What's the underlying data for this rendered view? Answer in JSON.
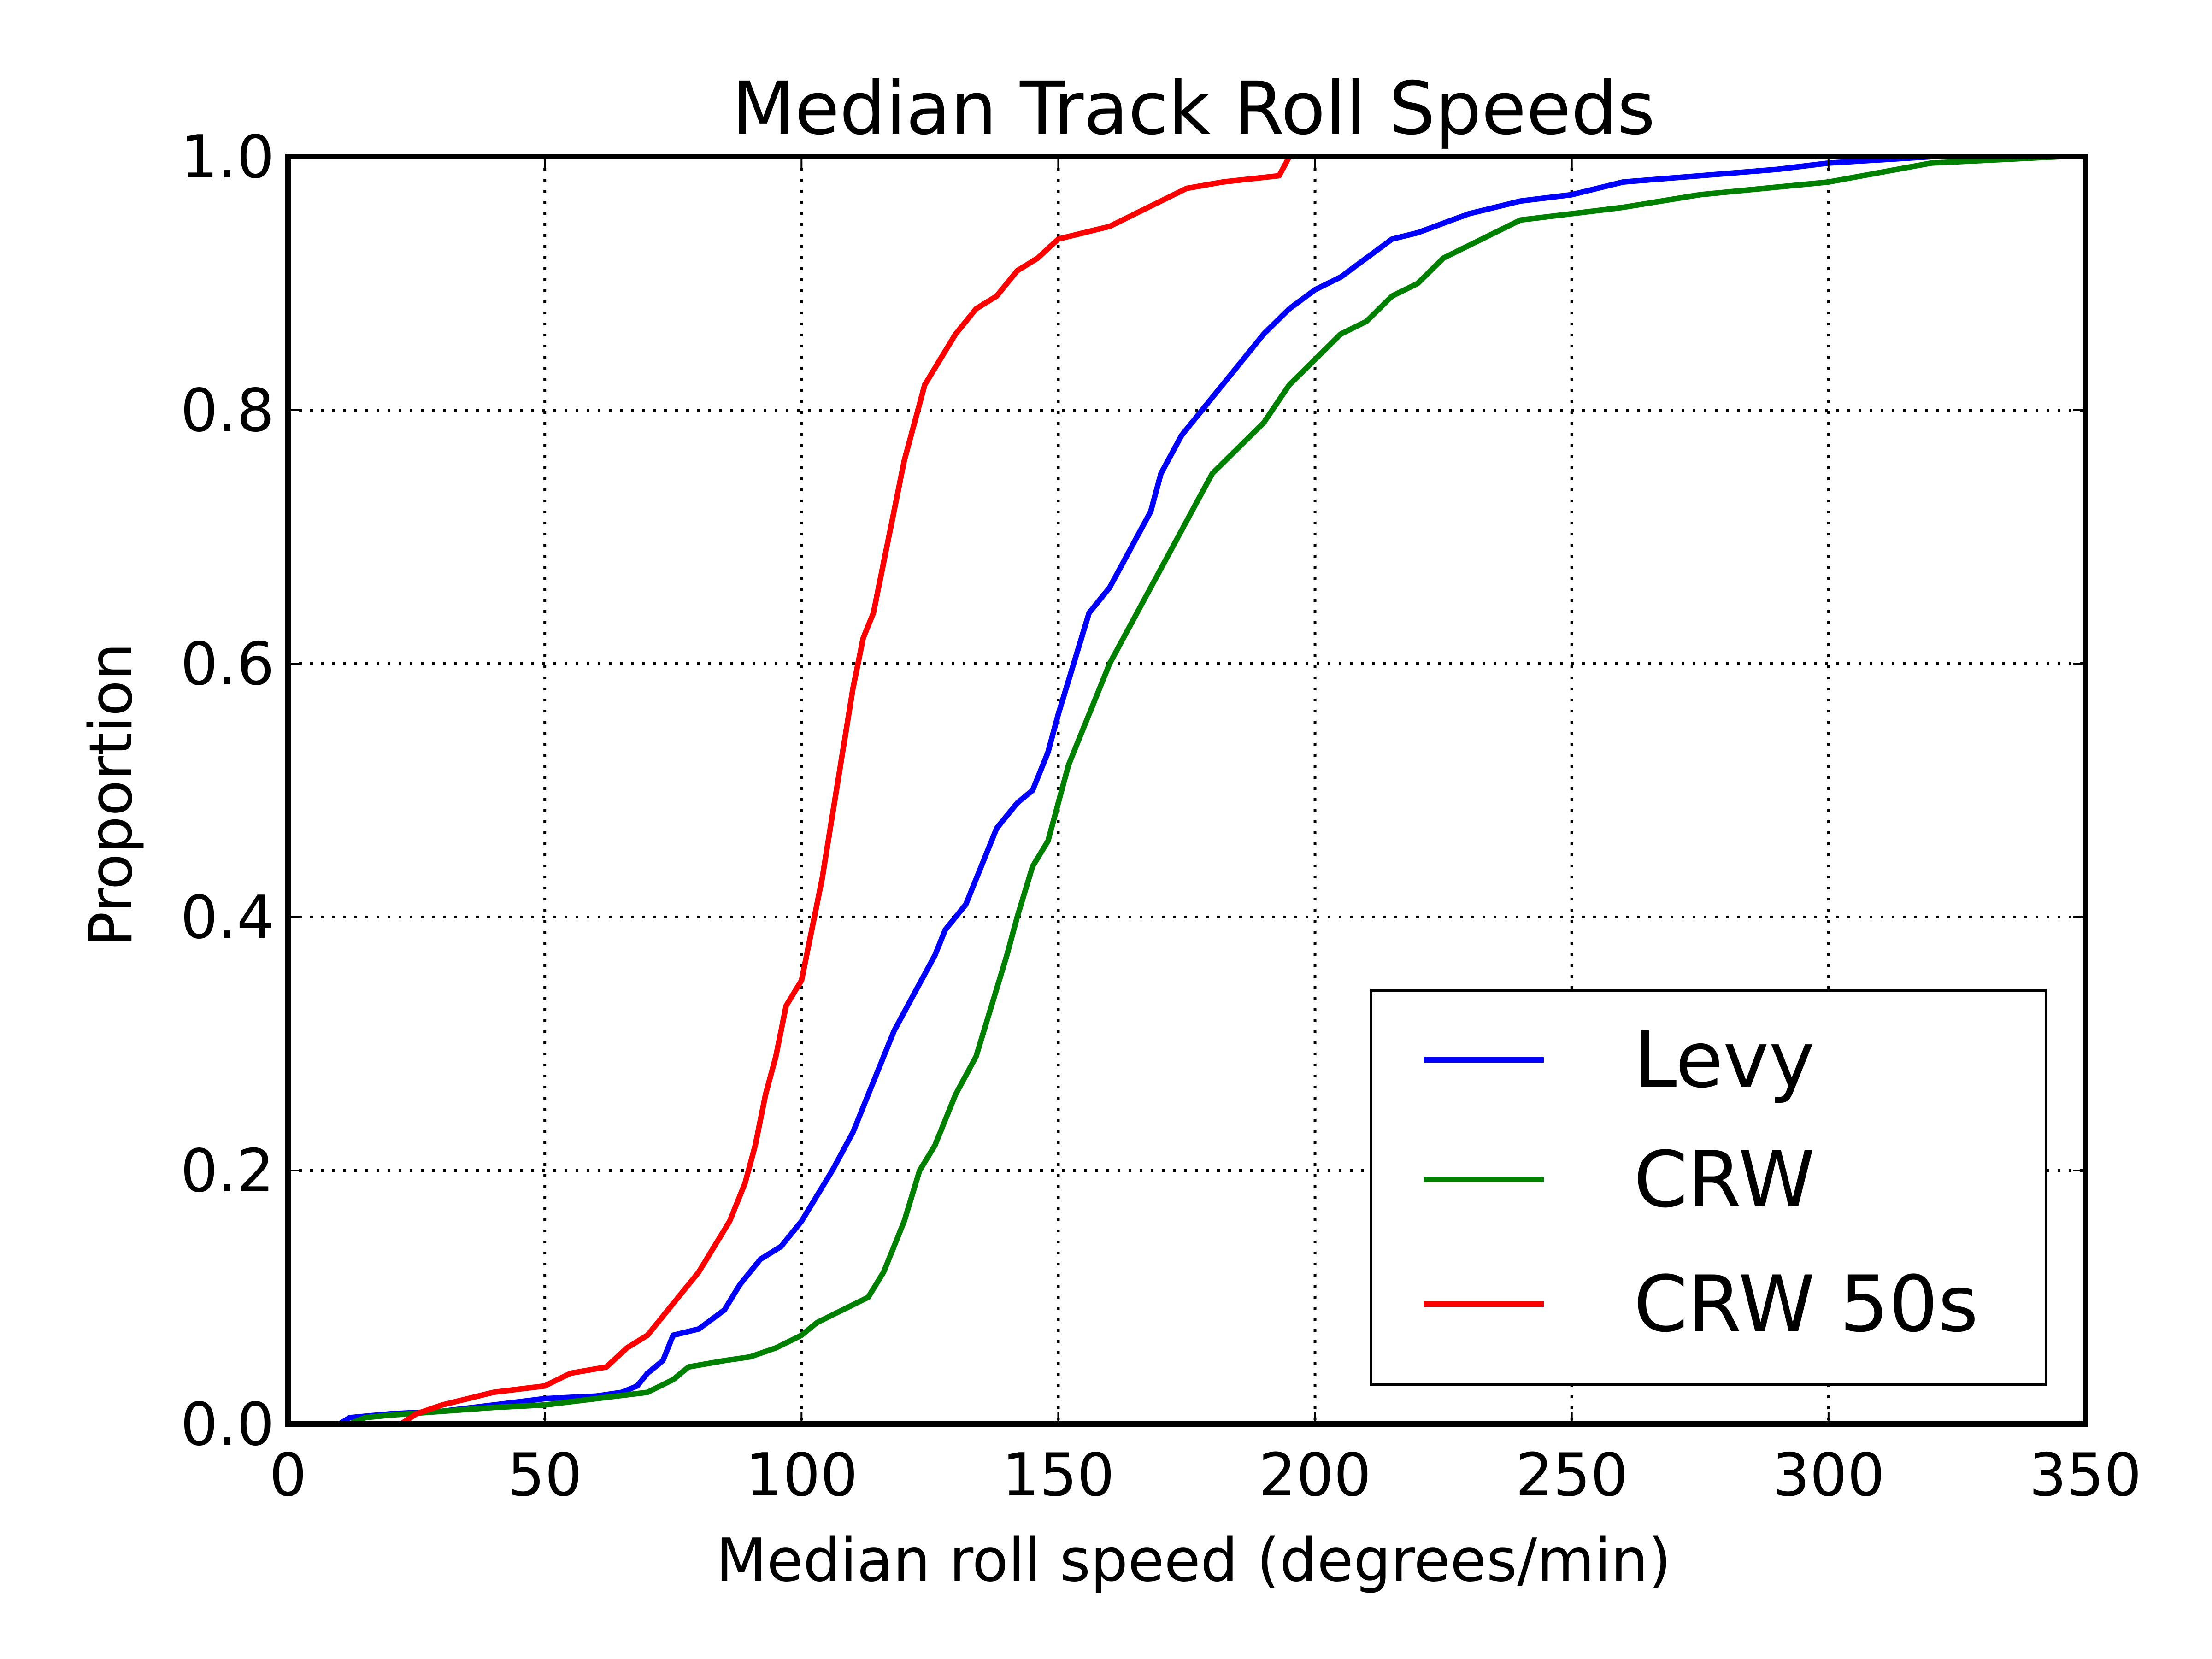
{
  "chart_data": {
    "type": "line",
    "title": "Median Track Roll Speeds",
    "xlabel": "Median roll speed (degrees/min)",
    "ylabel": "Proportion",
    "xlim": [
      0,
      350
    ],
    "ylim": [
      0.0,
      1.0
    ],
    "x_ticks": [
      "0",
      "50",
      "100",
      "150",
      "200",
      "250",
      "300",
      "350"
    ],
    "y_ticks": [
      "0.0",
      "0.2",
      "0.4",
      "0.6",
      "0.8",
      "1.0"
    ],
    "grid": true,
    "legend_position": "lower-right",
    "series": [
      {
        "name": "Levy",
        "color": "#0000ff",
        "points": [
          [
            10,
            0.0
          ],
          [
            12,
            0.005
          ],
          [
            20,
            0.008
          ],
          [
            30,
            0.01
          ],
          [
            40,
            0.015
          ],
          [
            50,
            0.02
          ],
          [
            60,
            0.022
          ],
          [
            65,
            0.025
          ],
          [
            68,
            0.03
          ],
          [
            70,
            0.04
          ],
          [
            73,
            0.05
          ],
          [
            75,
            0.07
          ],
          [
            80,
            0.075
          ],
          [
            85,
            0.09
          ],
          [
            88,
            0.11
          ],
          [
            92,
            0.13
          ],
          [
            96,
            0.14
          ],
          [
            100,
            0.16
          ],
          [
            103,
            0.18
          ],
          [
            106,
            0.2
          ],
          [
            110,
            0.23
          ],
          [
            114,
            0.27
          ],
          [
            118,
            0.31
          ],
          [
            122,
            0.34
          ],
          [
            126,
            0.37
          ],
          [
            128,
            0.39
          ],
          [
            132,
            0.41
          ],
          [
            135,
            0.44
          ],
          [
            138,
            0.47
          ],
          [
            142,
            0.49
          ],
          [
            145,
            0.5
          ],
          [
            148,
            0.53
          ],
          [
            150,
            0.56
          ],
          [
            153,
            0.6
          ],
          [
            156,
            0.64
          ],
          [
            160,
            0.66
          ],
          [
            164,
            0.69
          ],
          [
            168,
            0.72
          ],
          [
            170,
            0.75
          ],
          [
            174,
            0.78
          ],
          [
            178,
            0.8
          ],
          [
            182,
            0.82
          ],
          [
            186,
            0.84
          ],
          [
            190,
            0.86
          ],
          [
            195,
            0.88
          ],
          [
            200,
            0.895
          ],
          [
            205,
            0.905
          ],
          [
            210,
            0.92
          ],
          [
            215,
            0.935
          ],
          [
            220,
            0.94
          ],
          [
            230,
            0.955
          ],
          [
            240,
            0.965
          ],
          [
            250,
            0.97
          ],
          [
            260,
            0.98
          ],
          [
            275,
            0.985
          ],
          [
            290,
            0.99
          ],
          [
            300,
            0.995
          ],
          [
            320,
            1.0
          ]
        ]
      },
      {
        "name": "CRW",
        "color": "#008000",
        "points": [
          [
            12,
            0.0
          ],
          [
            15,
            0.005
          ],
          [
            20,
            0.007
          ],
          [
            30,
            0.01
          ],
          [
            40,
            0.013
          ],
          [
            50,
            0.015
          ],
          [
            60,
            0.02
          ],
          [
            70,
            0.025
          ],
          [
            75,
            0.035
          ],
          [
            78,
            0.045
          ],
          [
            85,
            0.05
          ],
          [
            90,
            0.053
          ],
          [
            95,
            0.06
          ],
          [
            100,
            0.07
          ],
          [
            103,
            0.08
          ],
          [
            108,
            0.09
          ],
          [
            113,
            0.1
          ],
          [
            116,
            0.12
          ],
          [
            118,
            0.14
          ],
          [
            120,
            0.16
          ],
          [
            123,
            0.2
          ],
          [
            126,
            0.22
          ],
          [
            130,
            0.26
          ],
          [
            134,
            0.29
          ],
          [
            137,
            0.33
          ],
          [
            140,
            0.37
          ],
          [
            142,
            0.4
          ],
          [
            145,
            0.44
          ],
          [
            148,
            0.46
          ],
          [
            150,
            0.49
          ],
          [
            152,
            0.52
          ],
          [
            155,
            0.55
          ],
          [
            158,
            0.58
          ],
          [
            160,
            0.6
          ],
          [
            164,
            0.63
          ],
          [
            168,
            0.66
          ],
          [
            172,
            0.69
          ],
          [
            176,
            0.72
          ],
          [
            180,
            0.75
          ],
          [
            185,
            0.77
          ],
          [
            190,
            0.79
          ],
          [
            195,
            0.82
          ],
          [
            200,
            0.84
          ],
          [
            205,
            0.86
          ],
          [
            210,
            0.87
          ],
          [
            215,
            0.89
          ],
          [
            220,
            0.9
          ],
          [
            225,
            0.92
          ],
          [
            230,
            0.93
          ],
          [
            235,
            0.94
          ],
          [
            240,
            0.95
          ],
          [
            250,
            0.955
          ],
          [
            260,
            0.96
          ],
          [
            275,
            0.97
          ],
          [
            300,
            0.98
          ],
          [
            320,
            0.995
          ],
          [
            345,
            1.0
          ]
        ]
      },
      {
        "name": "CRW 50s",
        "color": "#ff0000",
        "points": [
          [
            22,
            0.0
          ],
          [
            25,
            0.008
          ],
          [
            30,
            0.015
          ],
          [
            40,
            0.025
          ],
          [
            50,
            0.03
          ],
          [
            55,
            0.04
          ],
          [
            62,
            0.045
          ],
          [
            66,
            0.06
          ],
          [
            70,
            0.07
          ],
          [
            73,
            0.085
          ],
          [
            76,
            0.1
          ],
          [
            80,
            0.12
          ],
          [
            83,
            0.14
          ],
          [
            86,
            0.16
          ],
          [
            89,
            0.19
          ],
          [
            91,
            0.22
          ],
          [
            93,
            0.26
          ],
          [
            95,
            0.29
          ],
          [
            97,
            0.33
          ],
          [
            100,
            0.35
          ],
          [
            102,
            0.39
          ],
          [
            104,
            0.43
          ],
          [
            106,
            0.48
          ],
          [
            108,
            0.53
          ],
          [
            110,
            0.58
          ],
          [
            112,
            0.62
          ],
          [
            114,
            0.64
          ],
          [
            116,
            0.68
          ],
          [
            118,
            0.72
          ],
          [
            120,
            0.76
          ],
          [
            122,
            0.79
          ],
          [
            124,
            0.82
          ],
          [
            127,
            0.84
          ],
          [
            130,
            0.86
          ],
          [
            134,
            0.88
          ],
          [
            138,
            0.89
          ],
          [
            142,
            0.91
          ],
          [
            146,
            0.92
          ],
          [
            150,
            0.935
          ],
          [
            155,
            0.94
          ],
          [
            160,
            0.945
          ],
          [
            165,
            0.955
          ],
          [
            170,
            0.965
          ],
          [
            175,
            0.975
          ],
          [
            182,
            0.98
          ],
          [
            193,
            0.985
          ],
          [
            195,
            1.0
          ]
        ]
      }
    ]
  }
}
